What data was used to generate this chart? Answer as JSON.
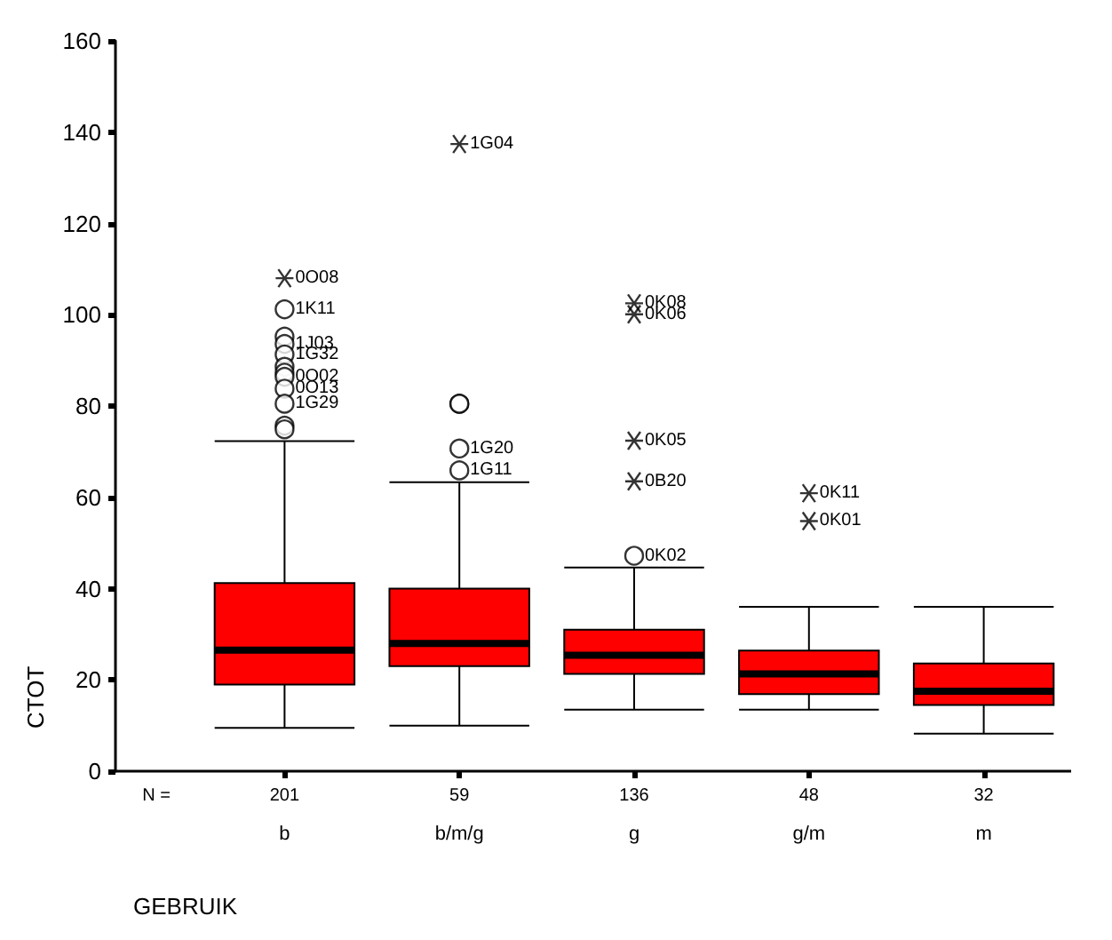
{
  "chart_data": {
    "type": "box",
    "xlabel": "GEBRUIK",
    "ylabel": "CTOT",
    "categories": [
      "b",
      "b/m/g",
      "g",
      "g/m",
      "m"
    ],
    "ylim": [
      0,
      160
    ],
    "yticks": [
      0,
      20,
      40,
      60,
      80,
      100,
      120,
      140,
      160
    ],
    "grid": false,
    "series": [
      {
        "color": "#ff0000",
        "boxes": [
          {
            "low": 9.5,
            "q1": 19,
            "median": 26.5,
            "q3": 41.2,
            "high": 72.3
          },
          {
            "low": 10,
            "q1": 23,
            "median": 28,
            "q3": 40,
            "high": 63.3
          },
          {
            "low": 13.5,
            "q1": 21.3,
            "median": 25.4,
            "q3": 31,
            "high": 44.6
          },
          {
            "low": 13.5,
            "q1": 16.9,
            "median": 21.3,
            "q3": 26.4,
            "high": 36
          },
          {
            "low": 8.2,
            "q1": 14.5,
            "median": 17.5,
            "q3": 23.6,
            "high": 36
          }
        ]
      },
      {
        "type": "scatter",
        "marker": "circle",
        "color": "#000000",
        "x": [
          "b",
          "b",
          "b",
          "b",
          "b",
          "b",
          "b",
          "b",
          "b",
          "b",
          "b",
          "b/m/g",
          "b/m/g",
          "b/m/g",
          "b/m/g",
          "g"
        ],
        "values": [
          101.2,
          95.2,
          93.6,
          91.3,
          88.6,
          87.3,
          86.4,
          83.8,
          80.5,
          75.7,
          74.9,
          80.5,
          80.5,
          70.7,
          65.9,
          47.2
        ]
      },
      {
        "type": "scatter",
        "marker": "cross",
        "color": "#000000",
        "x": [
          "b",
          "b/m/g",
          "g",
          "g",
          "g",
          "g",
          "g/m",
          "g/m"
        ],
        "values": [
          108,
          137.4,
          102.5,
          100.1,
          72.4,
          63.5,
          60.9,
          54.8
        ]
      }
    ],
    "annotations": [
      "N =",
      "201",
      "59",
      "136",
      "48",
      "32",
      {
        "text": "0O08",
        "x": "b",
        "y": 108
      },
      {
        "text": "1K11",
        "x": "b",
        "y": 101.2
      },
      {
        "text": "1J03",
        "x": "b",
        "y": 93.6
      },
      {
        "text": "1G32",
        "x": "b",
        "y": 91.3
      },
      {
        "text": "0O02",
        "x": "b",
        "y": 86.4
      },
      {
        "text": "0O13",
        "x": "b",
        "y": 83.8
      },
      {
        "text": "1G29",
        "x": "b",
        "y": 80.5
      },
      {
        "text": "1G04",
        "x": "b/m/g",
        "y": 137.4
      },
      {
        "text": "1G20",
        "x": "b/m/g",
        "y": 70.7
      },
      {
        "text": "1G11",
        "x": "b/m/g",
        "y": 65.9
      },
      {
        "text": "0K08",
        "x": "g",
        "y": 102.5
      },
      {
        "text": "0K06",
        "x": "g",
        "y": 100.1
      },
      {
        "text": "0K05",
        "x": "g",
        "y": 72.4
      },
      {
        "text": "0B20",
        "x": "g",
        "y": 63.5
      },
      {
        "text": "0K02",
        "x": "g",
        "y": 47.2
      },
      {
        "text": "0K11",
        "x": "g/m",
        "y": 60.9
      },
      {
        "text": "0K01",
        "x": "g/m",
        "y": 54.8
      }
    ]
  }
}
